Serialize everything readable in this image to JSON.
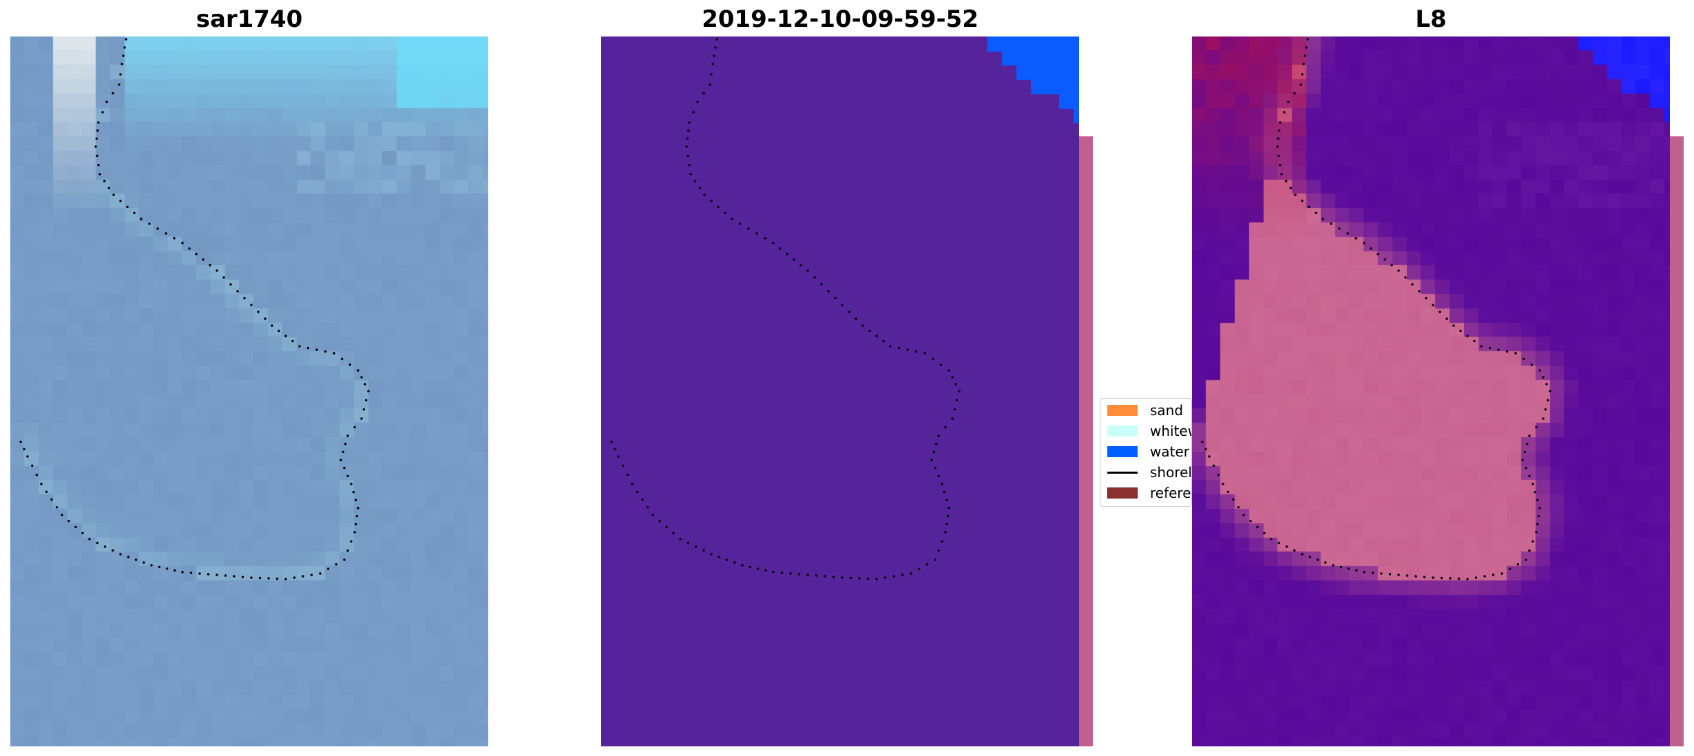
{
  "panels": [
    {
      "title": "sar1740",
      "kind": "rgb"
    },
    {
      "title": "2019-12-10-09-59-52",
      "kind": "classified"
    },
    {
      "title": "L8",
      "kind": "mndwi"
    }
  ],
  "legend": {
    "items": [
      {
        "label": "sand",
        "color": "#ff8c3a",
        "kind": "patch"
      },
      {
        "label": "whitewater",
        "color": "#c8fff8",
        "kind": "patch"
      },
      {
        "label": "water",
        "color": "#0060ff",
        "kind": "patch"
      },
      {
        "label": "shoreline",
        "color": "#000000",
        "kind": "line"
      },
      {
        "label": "reference",
        "color": "#8b2f2f",
        "kind": "patch"
      }
    ]
  },
  "colors": {
    "rgb_base": "#7499c4",
    "rgb_whitewater": "#7fd8f4",
    "rgb_bright": "#f4f6f2",
    "class_land": "#55249a",
    "class_water": "#0a5cff",
    "mndwi_land": "#5a0a9a",
    "mndwi_pink": "#c8638f",
    "mndwi_red": "#c8103a",
    "mndwi_water": "#1a1aff",
    "strip": "#c0608f",
    "shoreline": "#000000"
  }
}
